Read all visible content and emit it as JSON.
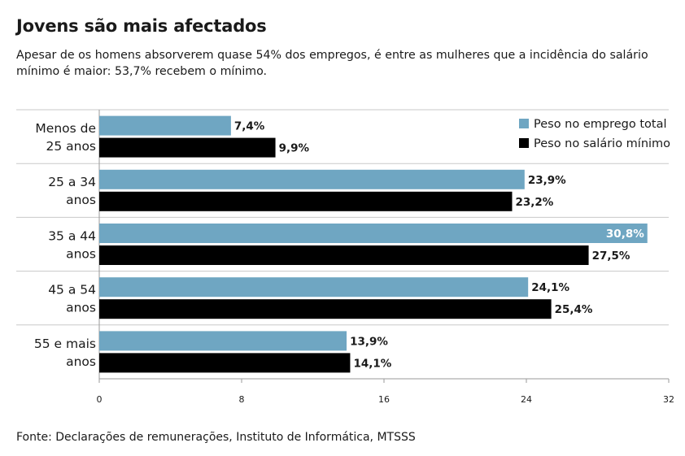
{
  "header": {
    "title": "Jovens são mais afectados",
    "subtitle": "Apesar de os homens absorverem quase 54% dos empregos, é entre as mulheres que a incidência do salário mínimo é maior: 53,7% recebem o mínimo."
  },
  "footer": {
    "source": "Fonte: Declarações de remunerações, Instituto de Informática, MTSSS"
  },
  "chart_data": {
    "type": "bar",
    "orientation": "horizontal",
    "categories": [
      [
        "Menos de",
        "25 anos"
      ],
      [
        "25 a 34",
        "anos"
      ],
      [
        "35 a 44",
        "anos"
      ],
      [
        "45 a 54",
        "anos"
      ],
      [
        "55 e mais",
        "anos"
      ]
    ],
    "series": [
      {
        "name": "Peso no emprego total",
        "color": "#6fa6c2",
        "values": [
          7.4,
          23.9,
          30.8,
          24.1,
          13.9
        ],
        "labels": [
          "7,4%",
          "23,9%",
          "30,8%",
          "24,1%",
          "13,9%"
        ]
      },
      {
        "name": "Peso no salário mínimo",
        "color": "#000000",
        "values": [
          9.9,
          23.2,
          27.5,
          25.4,
          14.1
        ],
        "labels": [
          "9,9%",
          "23,2%",
          "27,5%",
          "25,4%",
          "14,1%"
        ]
      }
    ],
    "xlim": [
      0,
      32
    ],
    "xticks": [
      0,
      8,
      16,
      24,
      32
    ],
    "xtick_labels": [
      "0",
      "8",
      "16",
      "24",
      "32"
    ],
    "legend_position": "top-right",
    "grid": "horizontal separators between categories"
  }
}
